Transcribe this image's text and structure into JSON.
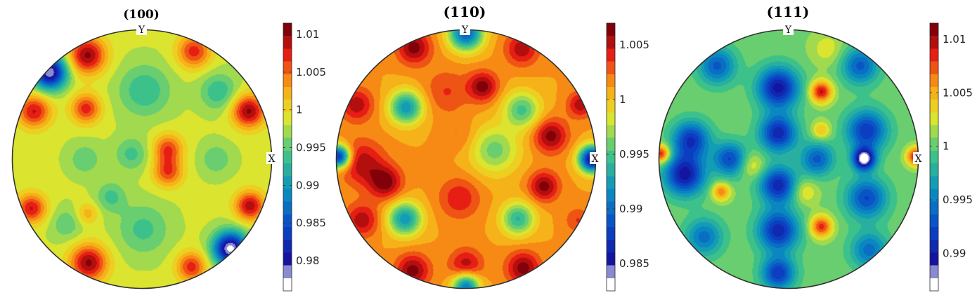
{
  "chart_data": [
    {
      "type": "heatmap",
      "title": "(100)",
      "axis_labels": {
        "x": "X",
        "y": "Y"
      },
      "colorbar": {
        "ticks": [
          "0.98",
          "0.985",
          "0.99",
          "0.995",
          "1",
          "1.005",
          "1.01"
        ],
        "tick_values": [
          0.98,
          0.985,
          0.99,
          0.995,
          1.0,
          1.005,
          1.01
        ],
        "range": [
          0.976,
          1.0115
        ]
      },
      "background": 0.9985,
      "blobs": [
        {
          "x": -0.42,
          "y": 0.8,
          "v": 1.011,
          "s": 0.1
        },
        {
          "x": 0.4,
          "y": 0.83,
          "v": 1.008,
          "s": 0.09
        },
        {
          "x": -0.71,
          "y": 0.67,
          "v": 0.977,
          "s": 0.09
        },
        {
          "x": -0.83,
          "y": 0.37,
          "v": 1.009,
          "s": 0.09
        },
        {
          "x": -0.43,
          "y": 0.39,
          "v": 1.008,
          "s": 0.08
        },
        {
          "x": 0.02,
          "y": 0.53,
          "v": 0.993,
          "s": 0.14
        },
        {
          "x": 0.59,
          "y": 0.52,
          "v": 0.993,
          "s": 0.1
        },
        {
          "x": 0.82,
          "y": 0.37,
          "v": 1.011,
          "s": 0.09
        },
        {
          "x": 0.2,
          "y": 0.08,
          "v": 1.007,
          "s": 0.08
        },
        {
          "x": 0.2,
          "y": -0.1,
          "v": 1.007,
          "s": 0.08
        },
        {
          "x": -0.08,
          "y": 0.04,
          "v": 0.994,
          "s": 0.09
        },
        {
          "x": -0.44,
          "y": 0.0,
          "v": 0.995,
          "s": 0.09
        },
        {
          "x": 0.57,
          "y": 0.0,
          "v": 0.995,
          "s": 0.09
        },
        {
          "x": -0.85,
          "y": -0.38,
          "v": 1.009,
          "s": 0.08
        },
        {
          "x": 0.83,
          "y": -0.36,
          "v": 1.01,
          "s": 0.08
        },
        {
          "x": -0.24,
          "y": -0.29,
          "v": 0.994,
          "s": 0.08
        },
        {
          "x": -0.42,
          "y": -0.42,
          "v": 1.003,
          "s": 0.06
        },
        {
          "x": 0.01,
          "y": -0.54,
          "v": 0.994,
          "s": 0.14
        },
        {
          "x": 0.68,
          "y": -0.69,
          "v": 0.976,
          "s": 0.09
        },
        {
          "x": -0.41,
          "y": -0.8,
          "v": 1.011,
          "s": 0.1
        },
        {
          "x": 0.38,
          "y": -0.83,
          "v": 1.008,
          "s": 0.08
        },
        {
          "x": -0.58,
          "y": -0.5,
          "v": 0.995,
          "s": 0.09
        }
      ]
    },
    {
      "type": "heatmap",
      "title": "(110)",
      "axis_labels": {
        "x": "X",
        "y": "Y"
      },
      "colorbar": {
        "ticks": [
          "0.985",
          "0.99",
          "0.995",
          "1",
          "1.005"
        ],
        "tick_values": [
          0.985,
          0.99,
          0.995,
          1.0,
          1.005
        ],
        "range": [
          0.9825,
          1.007
        ]
      },
      "background": 1.0015,
      "blobs": [
        {
          "x": 0.0,
          "y": 0.97,
          "v": 0.989,
          "s": 0.09
        },
        {
          "x": -0.4,
          "y": 0.86,
          "v": 1.007,
          "s": 0.09
        },
        {
          "x": 0.43,
          "y": 0.85,
          "v": 1.006,
          "s": 0.09
        },
        {
          "x": 0.13,
          "y": 0.56,
          "v": 1.007,
          "s": 0.08
        },
        {
          "x": -0.15,
          "y": 0.52,
          "v": 1.004,
          "s": 0.12
        },
        {
          "x": -0.46,
          "y": 0.4,
          "v": 0.992,
          "s": 0.09
        },
        {
          "x": 0.43,
          "y": 0.38,
          "v": 0.995,
          "s": 0.1
        },
        {
          "x": -0.84,
          "y": 0.42,
          "v": 1.006,
          "s": 0.09
        },
        {
          "x": 0.88,
          "y": 0.42,
          "v": 1.006,
          "s": 0.07
        },
        {
          "x": 0.65,
          "y": 0.18,
          "v": 1.007,
          "s": 0.09
        },
        {
          "x": 0.97,
          "y": 0.0,
          "v": 0.984,
          "s": 0.07
        },
        {
          "x": -0.98,
          "y": 0.02,
          "v": 0.986,
          "s": 0.06
        },
        {
          "x": -0.8,
          "y": -0.03,
          "v": 1.006,
          "s": 0.12
        },
        {
          "x": -0.62,
          "y": -0.18,
          "v": 1.007,
          "s": 0.09
        },
        {
          "x": 0.22,
          "y": 0.07,
          "v": 0.996,
          "s": 0.13
        },
        {
          "x": 0.6,
          "y": -0.21,
          "v": 1.007,
          "s": 0.08
        },
        {
          "x": -0.05,
          "y": -0.3,
          "v": 1.005,
          "s": 0.11
        },
        {
          "x": -0.47,
          "y": -0.46,
          "v": 0.992,
          "s": 0.09
        },
        {
          "x": 0.4,
          "y": -0.46,
          "v": 0.994,
          "s": 0.09
        },
        {
          "x": -0.8,
          "y": -0.47,
          "v": 1.006,
          "s": 0.09
        },
        {
          "x": 0.86,
          "y": -0.47,
          "v": 1.004,
          "s": 0.07
        },
        {
          "x": 0.0,
          "y": -0.82,
          "v": 1.006,
          "s": 0.09
        },
        {
          "x": -0.41,
          "y": -0.86,
          "v": 1.007,
          "s": 0.09
        },
        {
          "x": 0.44,
          "y": -0.84,
          "v": 1.007,
          "s": 0.09
        },
        {
          "x": 0.0,
          "y": -0.98,
          "v": 0.99,
          "s": 0.07
        },
        {
          "x": -0.05,
          "y": 0.18,
          "v": 1.003,
          "s": 0.09
        }
      ]
    },
    {
      "type": "heatmap",
      "title": "(111)",
      "axis_labels": {
        "x": "X",
        "y": "Y"
      },
      "colorbar": {
        "ticks": [
          "0.99",
          "0.995",
          "1",
          "1.005",
          "1.01"
        ],
        "tick_values": [
          0.99,
          0.995,
          1.0,
          1.005,
          1.01
        ],
        "range": [
          0.9865,
          1.0115
        ]
      },
      "background": 1.0005,
      "blobs": [
        {
          "x": -0.08,
          "y": 0.55,
          "v": 0.989,
          "s": 0.11
        },
        {
          "x": -0.08,
          "y": 0.2,
          "v": 0.99,
          "s": 0.1
        },
        {
          "x": -0.08,
          "y": -0.2,
          "v": 0.99,
          "s": 0.1
        },
        {
          "x": -0.08,
          "y": -0.55,
          "v": 0.99,
          "s": 0.11
        },
        {
          "x": -0.08,
          "y": -0.88,
          "v": 0.991,
          "s": 0.09
        },
        {
          "x": -0.45,
          "y": 0.0,
          "v": 0.992,
          "s": 0.09
        },
        {
          "x": 0.22,
          "y": 0.0,
          "v": 0.993,
          "s": 0.09
        },
        {
          "x": -0.75,
          "y": 0.15,
          "v": 0.991,
          "s": 0.1
        },
        {
          "x": -0.8,
          "y": -0.12,
          "v": 0.989,
          "s": 0.11
        },
        {
          "x": -0.55,
          "y": 0.72,
          "v": 0.993,
          "s": 0.1
        },
        {
          "x": 0.55,
          "y": 0.72,
          "v": 0.993,
          "s": 0.1
        },
        {
          "x": 0.6,
          "y": 0.22,
          "v": 0.991,
          "s": 0.11
        },
        {
          "x": 0.6,
          "y": -0.3,
          "v": 0.992,
          "s": 0.11
        },
        {
          "x": 0.62,
          "y": -0.7,
          "v": 0.994,
          "s": 0.1
        },
        {
          "x": -0.65,
          "y": -0.6,
          "v": 0.994,
          "s": 0.1
        },
        {
          "x": 0.58,
          "y": 0.0,
          "v": 0.9865,
          "s": 0.06
        },
        {
          "x": 0.25,
          "y": 0.52,
          "v": 1.01,
          "s": 0.06
        },
        {
          "x": 0.25,
          "y": 0.22,
          "v": 1.005,
          "s": 0.05
        },
        {
          "x": 0.25,
          "y": -0.52,
          "v": 1.009,
          "s": 0.06
        },
        {
          "x": -0.52,
          "y": -0.25,
          "v": 1.007,
          "s": 0.05
        },
        {
          "x": -0.98,
          "y": 0.04,
          "v": 1.01,
          "s": 0.05
        },
        {
          "x": 0.98,
          "y": 0.02,
          "v": 1.01,
          "s": 0.05
        },
        {
          "x": -0.28,
          "y": -0.05,
          "v": 1.004,
          "s": 0.07
        },
        {
          "x": 0.12,
          "y": -0.25,
          "v": 1.004,
          "s": 0.07
        },
        {
          "x": 0.3,
          "y": 0.85,
          "v": 1.003,
          "s": 0.09
        }
      ]
    }
  ]
}
